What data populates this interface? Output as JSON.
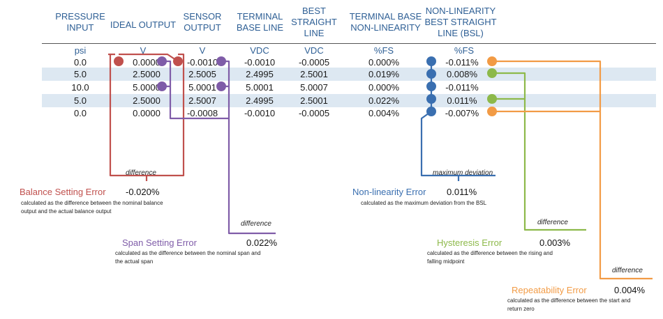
{
  "headers": [
    {
      "id": "pressure",
      "lines": [
        "PRESSURE",
        "INPUT"
      ]
    },
    {
      "id": "ideal",
      "lines": [
        "IDEAL OUTPUT"
      ]
    },
    {
      "id": "sensor",
      "lines": [
        "SENSOR",
        "OUTPUT"
      ]
    },
    {
      "id": "tbl",
      "lines": [
        "TERMINAL",
        "BASE LINE"
      ]
    },
    {
      "id": "bsl",
      "lines": [
        "BEST",
        "STRAIGHT",
        "LINE"
      ]
    },
    {
      "id": "tbnl",
      "lines": [
        "TERMINAL BASE",
        "NON-LINEARITY"
      ]
    },
    {
      "id": "nlbsl",
      "lines": [
        "NON-LINEARITY",
        "BEST STRAIGHT",
        "LINE (BSL)"
      ]
    }
  ],
  "units": [
    "psi",
    "V",
    "V",
    "VDC",
    "VDC",
    "%FS",
    "%FS"
  ],
  "rows": [
    [
      "0.0",
      "0.0000",
      "-0.0010",
      "-0.0010",
      "-0.0005",
      "0.000%",
      "-0.011%"
    ],
    [
      "5.0",
      "2.5000",
      "2.5005",
      "2.4995",
      "2.5001",
      "0.019%",
      "0.008%"
    ],
    [
      "10.0",
      "5.0000",
      "5.0001",
      "5.0001",
      "5.0007",
      "0.000%",
      "-0.011%"
    ],
    [
      "5.0",
      "2.5000",
      "2.5007",
      "2.4995",
      "2.5001",
      "0.022%",
      "0.011%"
    ],
    [
      "0.0",
      "0.0000",
      "-0.0008",
      "-0.0010",
      "-0.0005",
      "0.004%",
      "-0.007%"
    ]
  ],
  "errors": {
    "balance": {
      "tag": "difference",
      "title": "Balance Setting Error",
      "value": "-0.020%",
      "desc_lines": [
        "calculated as the difference between the nominal balance",
        "output and the actual balance output"
      ],
      "color": "#c0504d"
    },
    "span": {
      "tag": "difference",
      "title": "Span Setting Error",
      "value": "0.022%",
      "desc_lines": [
        "calculated as the difference between the nominal span and",
        "the actual span"
      ],
      "color": "#7f5ca8"
    },
    "nonlin": {
      "tag": "maximum deviation",
      "title": "Non-linearity Error",
      "value": "0.011%",
      "desc_lines": [
        "calculated as the maximum deviation from the BSL"
      ],
      "color": "#3a6fb0"
    },
    "hyst": {
      "tag": "difference",
      "title": "Hysteresis Error",
      "value": "0.003%",
      "desc_lines": [
        "calculated as the difference between the rising and",
        "falling midpoint"
      ],
      "color": "#8db94a"
    },
    "repeat": {
      "tag": "difference",
      "title": "Repeatability Error",
      "value": "0.004%",
      "desc_lines": [
        "calculated as the difference between the start and",
        "return zero"
      ],
      "color": "#f29b45"
    }
  },
  "colors": {
    "header": "#2e5f95",
    "band": "#dde8f2"
  }
}
